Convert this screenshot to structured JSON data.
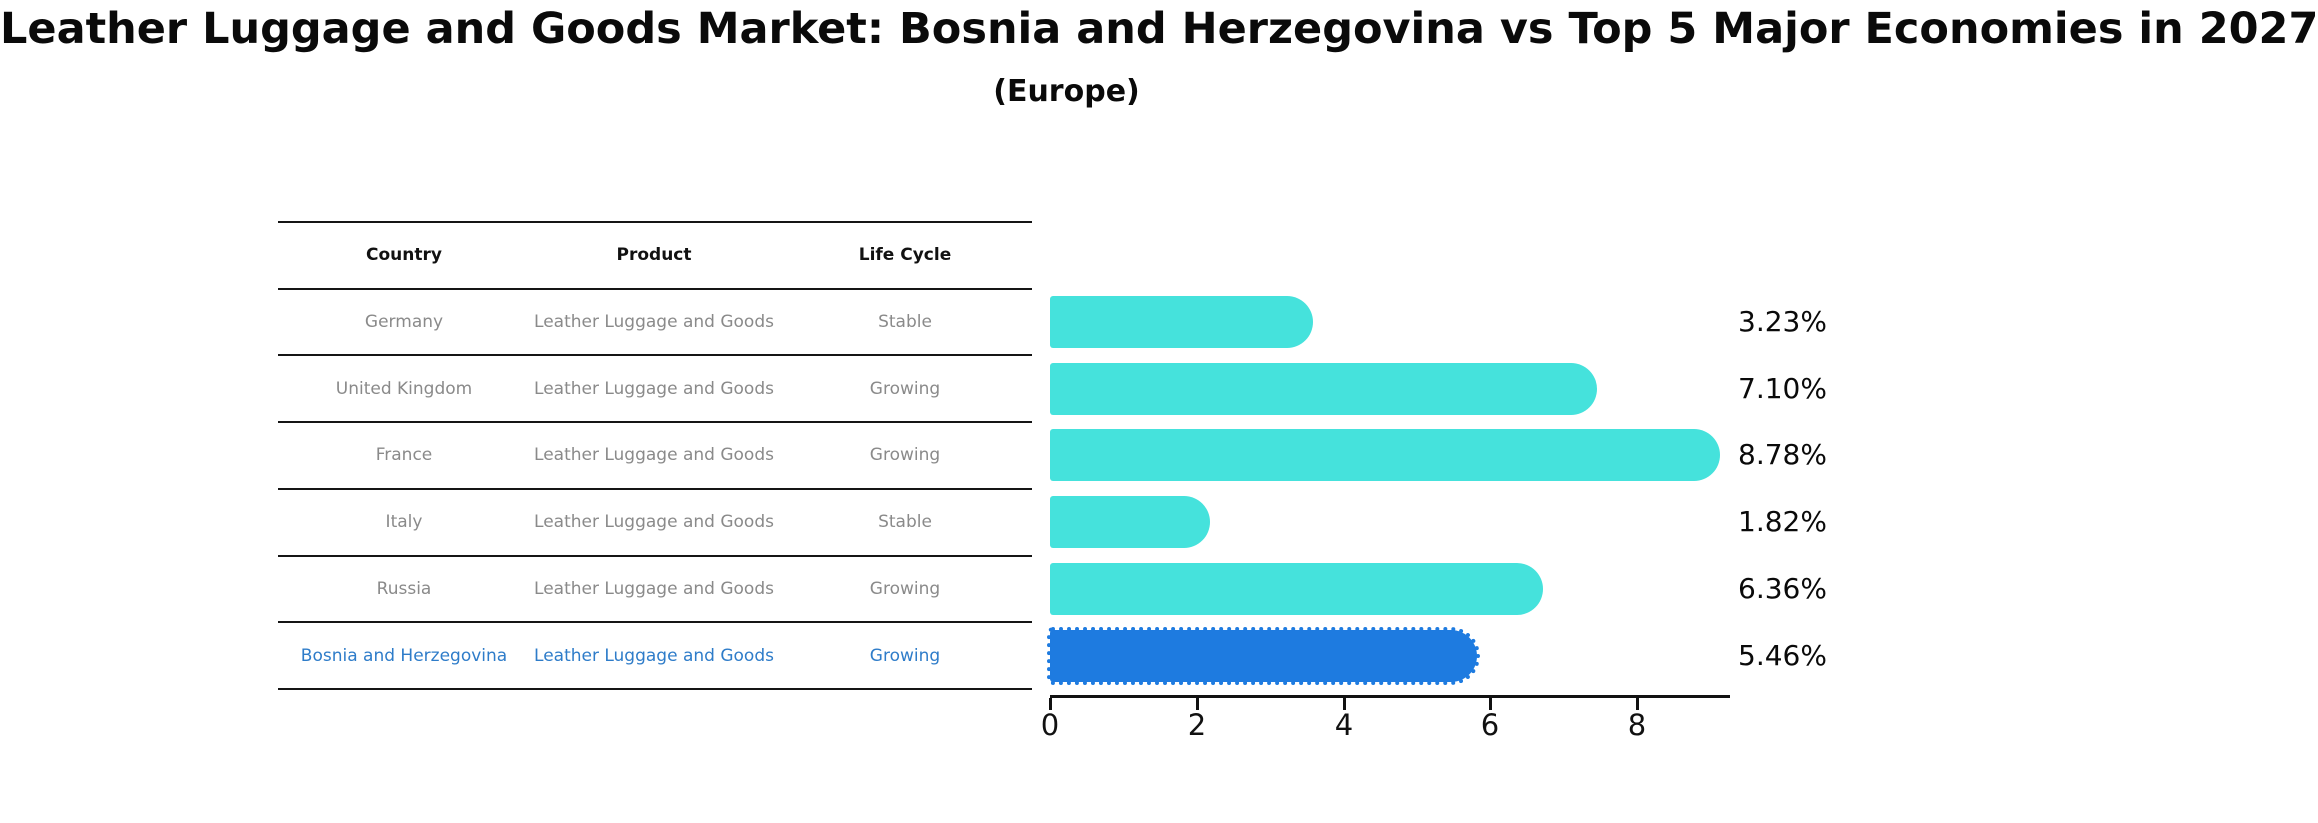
{
  "chart_data": {
    "type": "bar",
    "orientation": "horizontal",
    "title": "Leather Luggage and Goods Market: Bosnia and Herzegovina vs Top 5 Major Economies in 2027",
    "subtitle": "(Europe)",
    "categories": [
      "Germany",
      "United Kingdom",
      "France",
      "Italy",
      "Russia",
      "Bosnia and Herzegovina"
    ],
    "values": [
      3.23,
      7.1,
      8.78,
      1.82,
      6.36,
      5.46
    ],
    "value_labels": [
      "3.23%",
      "7.10%",
      "8.78%",
      "1.82%",
      "6.36%",
      "5.46%"
    ],
    "highlight_index": 5,
    "x_ticks": [
      "0",
      "2",
      "4",
      "6",
      "8"
    ],
    "x_tick_values": [
      0,
      2,
      4,
      6,
      8
    ],
    "xlim": [
      0,
      9.26
    ],
    "grid": false,
    "legend": false
  },
  "table": {
    "headers": [
      "Country",
      "Product",
      "Life Cycle"
    ],
    "rows": [
      {
        "cells": [
          "Germany",
          "Leather Luggage and Goods",
          "Stable"
        ],
        "highlight": false
      },
      {
        "cells": [
          "United Kingdom",
          "Leather Luggage and Goods",
          "Growing"
        ],
        "highlight": false
      },
      {
        "cells": [
          "France",
          "Leather Luggage and Goods",
          "Growing"
        ],
        "highlight": false
      },
      {
        "cells": [
          "Italy",
          "Leather Luggage and Goods",
          "Stable"
        ],
        "highlight": false
      },
      {
        "cells": [
          "Russia",
          "Leather Luggage and Goods",
          "Growing"
        ],
        "highlight": false
      },
      {
        "cells": [
          "Bosnia and Herzegovina",
          "Leather Luggage and Goods",
          "Growing"
        ],
        "highlight": true
      }
    ]
  },
  "colors": {
    "bar": "#45E2DC",
    "highlight_bar": "#1E7BE0",
    "highlight_text": "#2E7CC9",
    "cell_text": "#8A8A8A",
    "header_text": "#111111",
    "axis": "#111111",
    "value_label_text": "#0a0a0a",
    "background": "#FFFFFF"
  }
}
